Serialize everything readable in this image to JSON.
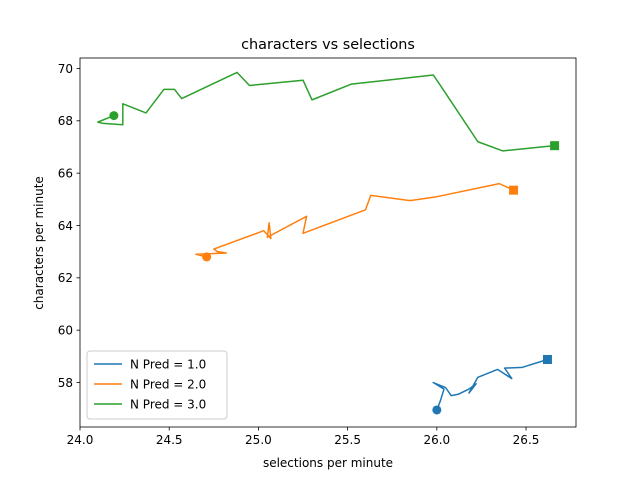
{
  "chart_data": {
    "type": "line",
    "title": "characters vs selections",
    "xlabel": "selections per minute",
    "ylabel": "characters per minute",
    "xlim": [
      24.0,
      26.78
    ],
    "ylim": [
      56.3,
      70.4
    ],
    "xticks": [
      24.0,
      24.5,
      25.0,
      25.5,
      26.0,
      26.5
    ],
    "xtick_labels": [
      "24.0",
      "24.5",
      "25.0",
      "25.5",
      "26.0",
      "26.5"
    ],
    "yticks": [
      58,
      60,
      62,
      64,
      66,
      68,
      70
    ],
    "ytick_labels": [
      "58",
      "60",
      "62",
      "64",
      "66",
      "68",
      "70"
    ],
    "grid": false,
    "legend_position": "lower-left",
    "series": [
      {
        "name": "N Pred = 1.0",
        "color": "#1f77b4",
        "start_marker": "circle",
        "end_marker": "square",
        "points": [
          [
            26.0,
            56.95
          ],
          [
            26.02,
            57.3
          ],
          [
            26.04,
            57.75
          ],
          [
            25.98,
            58.0
          ],
          [
            26.05,
            57.8
          ],
          [
            26.08,
            57.5
          ],
          [
            26.12,
            57.55
          ],
          [
            26.18,
            57.75
          ],
          [
            26.22,
            57.95
          ],
          [
            26.18,
            57.6
          ],
          [
            26.23,
            58.2
          ],
          [
            26.34,
            58.5
          ],
          [
            26.42,
            58.15
          ],
          [
            26.38,
            58.55
          ],
          [
            26.48,
            58.58
          ],
          [
            26.62,
            58.88
          ]
        ]
      },
      {
        "name": "N Pred = 2.0",
        "color": "#ff7f0e",
        "start_marker": "circle",
        "end_marker": "square",
        "points": [
          [
            24.71,
            62.8
          ],
          [
            24.65,
            62.9
          ],
          [
            24.82,
            62.95
          ],
          [
            24.77,
            63.0
          ],
          [
            24.75,
            63.1
          ],
          [
            25.03,
            63.8
          ],
          [
            25.07,
            63.5
          ],
          [
            25.06,
            64.1
          ],
          [
            25.05,
            63.55
          ],
          [
            25.27,
            64.35
          ],
          [
            25.25,
            63.7
          ],
          [
            25.6,
            64.6
          ],
          [
            25.63,
            65.15
          ],
          [
            25.85,
            64.95
          ],
          [
            26.0,
            65.1
          ],
          [
            26.35,
            65.6
          ],
          [
            26.43,
            65.35
          ]
        ]
      },
      {
        "name": "N Pred = 3.0",
        "color": "#2ca02c",
        "start_marker": "circle",
        "end_marker": "square",
        "points": [
          [
            24.19,
            68.2
          ],
          [
            24.1,
            67.95
          ],
          [
            24.13,
            67.9
          ],
          [
            24.24,
            67.85
          ],
          [
            24.24,
            68.65
          ],
          [
            24.37,
            68.3
          ],
          [
            24.47,
            69.2
          ],
          [
            24.53,
            69.2
          ],
          [
            24.57,
            68.85
          ],
          [
            24.88,
            69.85
          ],
          [
            24.95,
            69.35
          ],
          [
            25.25,
            69.55
          ],
          [
            25.3,
            68.8
          ],
          [
            25.52,
            69.4
          ],
          [
            25.98,
            69.75
          ],
          [
            26.02,
            69.35
          ],
          [
            26.23,
            67.2
          ],
          [
            26.37,
            66.85
          ],
          [
            26.66,
            67.05
          ]
        ]
      }
    ]
  }
}
